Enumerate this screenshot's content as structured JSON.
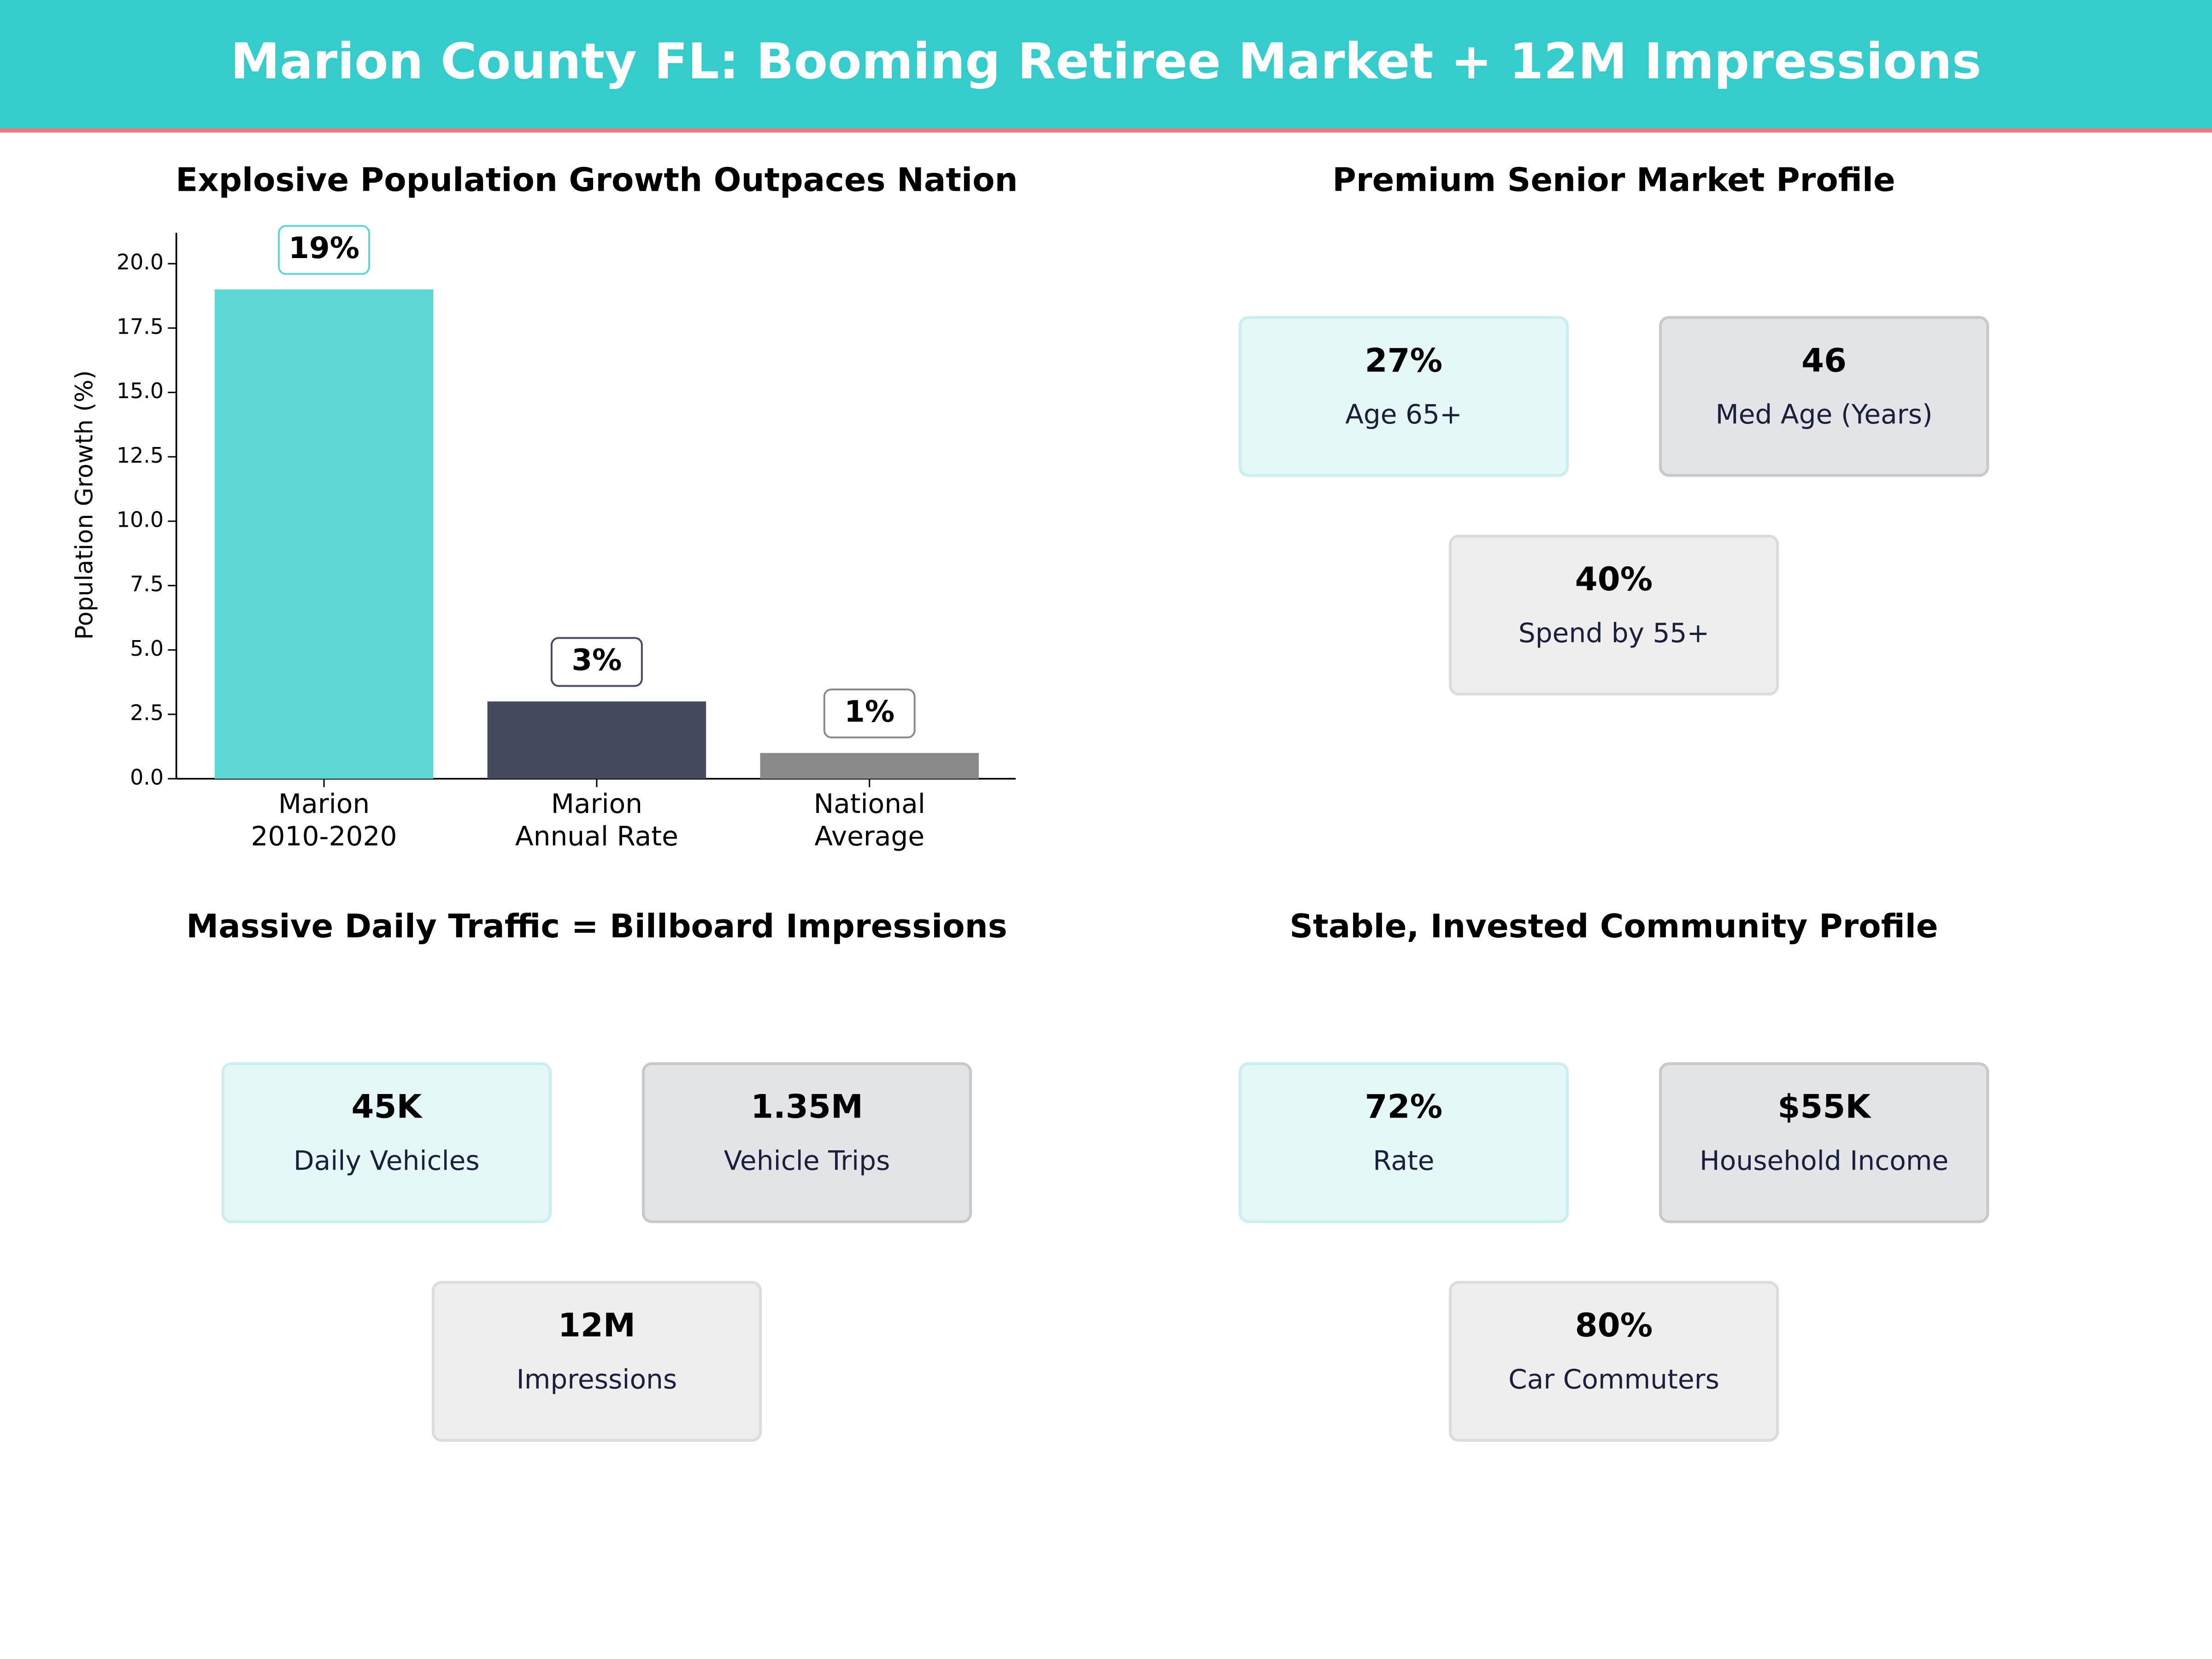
{
  "title": "Marion County FL: Booming Retiree Market + 12M Impressions",
  "chart_data": {
    "type": "bar",
    "title": "Explosive Population Growth Outpaces Nation",
    "ylabel": "Population Growth (%)",
    "categories": [
      [
        "Marion",
        "2010-2020"
      ],
      [
        "Marion",
        "Annual Rate"
      ],
      [
        "National",
        "Average"
      ]
    ],
    "values": [
      19,
      3,
      1
    ],
    "value_labels": [
      "19%",
      "3%",
      "1%"
    ],
    "colors": [
      "#5dd8d4",
      "#464a5e",
      "#8a8a8a"
    ],
    "ylim": [
      0,
      21.2
    ],
    "yticks": [
      {
        "value": 0,
        "label": "0.0"
      },
      2.5,
      {
        "value": 5,
        "label": "5.0"
      },
      7.5,
      {
        "value": 10,
        "label": "10.0"
      },
      12.5,
      {
        "value": 15,
        "label": "15.0"
      },
      17.5,
      {
        "value": 20,
        "label": "20.0"
      }
    ],
    "grid": false
  },
  "panels": [
    {
      "title": "Premium Senior Market Profile",
      "cards": [
        {
          "value": "27%",
          "label": "Age 65+"
        },
        {
          "value": "46",
          "label": "Med Age (Years)"
        },
        {
          "value": "40%",
          "label": "Spend by 55+"
        }
      ]
    },
    {
      "title": "Massive Daily Traffic = Billboard Impressions",
      "cards": [
        {
          "value": "45K",
          "label": "Daily Vehicles"
        },
        {
          "value": "1.35M",
          "label": "Vehicle Trips"
        },
        {
          "value": "12M",
          "label": "Impressions"
        }
      ]
    },
    {
      "title": "Stable, Invested Community Profile",
      "cards": [
        {
          "value": "72%",
          "label": "Rate"
        },
        {
          "value": "$55K",
          "label": "Household Income"
        },
        {
          "value": "80%",
          "label": "Car Commuters"
        }
      ]
    }
  ]
}
